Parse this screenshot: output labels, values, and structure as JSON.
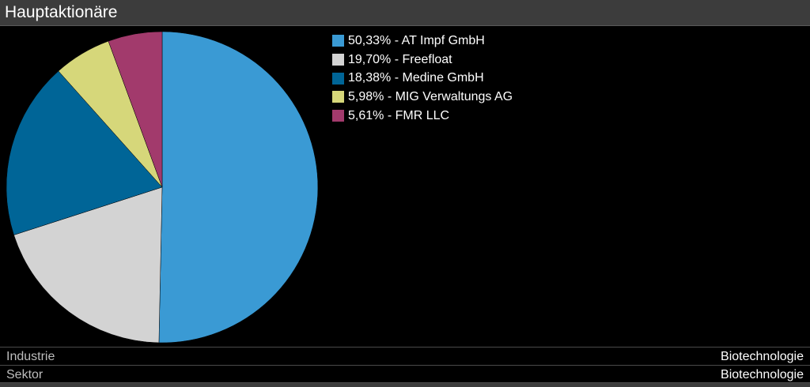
{
  "header": {
    "title": "Hauptaktionäre"
  },
  "chart_data": {
    "type": "pie",
    "slices": [
      {
        "label": "50,33% - AT Impf GmbH",
        "name": "AT Impf GmbH",
        "value": 50.33,
        "color": "#3a9ad4"
      },
      {
        "label": "19,70% - Freefloat",
        "name": "Freefloat",
        "value": 19.7,
        "color": "#d3d3d3"
      },
      {
        "label": "18,38% - Medine GmbH",
        "name": "Medine GmbH",
        "value": 18.38,
        "color": "#006597"
      },
      {
        "label": "5,98% - MIG Verwaltungs AG",
        "name": "MIG Verwaltungs AG",
        "value": 5.98,
        "color": "#d6d77a"
      },
      {
        "label": "5,61% - FMR LLC",
        "name": "FMR LLC",
        "value": 5.61,
        "color": "#a23a6c"
      }
    ],
    "legend_position": "top-right",
    "start": "top",
    "direction": "clockwise"
  },
  "info": [
    {
      "label": "Industrie",
      "value": "Biotechnologie"
    },
    {
      "label": "Sektor",
      "value": "Biotechnologie"
    }
  ]
}
